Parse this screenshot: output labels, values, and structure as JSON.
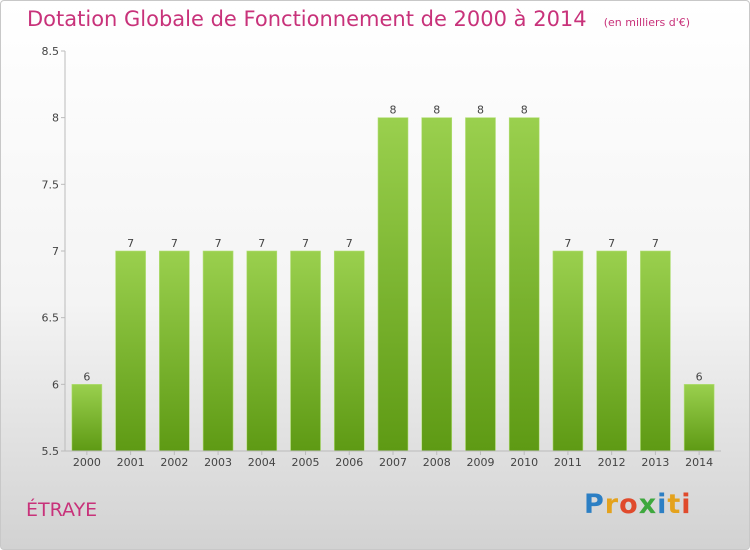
{
  "colors": {
    "title": "#c8327a",
    "bar_top": "#9ad04e",
    "bar_bottom": "#5e9a14",
    "axis": "#bbbbbb",
    "grid": "#e6e6e6",
    "text": "#444444"
  },
  "chart_data": {
    "type": "bar",
    "title": "Dotation Globale de Fonctionnement de 2000 à 2014",
    "subtitle": "(en milliers d'€)",
    "xlabel": "",
    "ylabel": "",
    "ylim": [
      5.5,
      8.5
    ],
    "yticks": [
      "5.5",
      "6",
      "6.5",
      "7",
      "7.5",
      "8",
      "8.5"
    ],
    "categories": [
      "2000",
      "2001",
      "2002",
      "2003",
      "2004",
      "2005",
      "2006",
      "2007",
      "2008",
      "2009",
      "2010",
      "2011",
      "2012",
      "2013",
      "2014"
    ],
    "values": [
      6,
      7,
      7,
      7,
      7,
      7,
      7,
      8,
      8,
      8,
      8,
      7,
      7,
      7,
      6
    ],
    "data_labels": [
      "6",
      "7",
      "7",
      "7",
      "7",
      "7",
      "7",
      "8",
      "8",
      "8",
      "8",
      "7",
      "7",
      "7",
      "6"
    ],
    "legend": "none",
    "grid": false
  },
  "footer": {
    "commune": "ÉTRAYE",
    "brand": "Proxiti"
  }
}
